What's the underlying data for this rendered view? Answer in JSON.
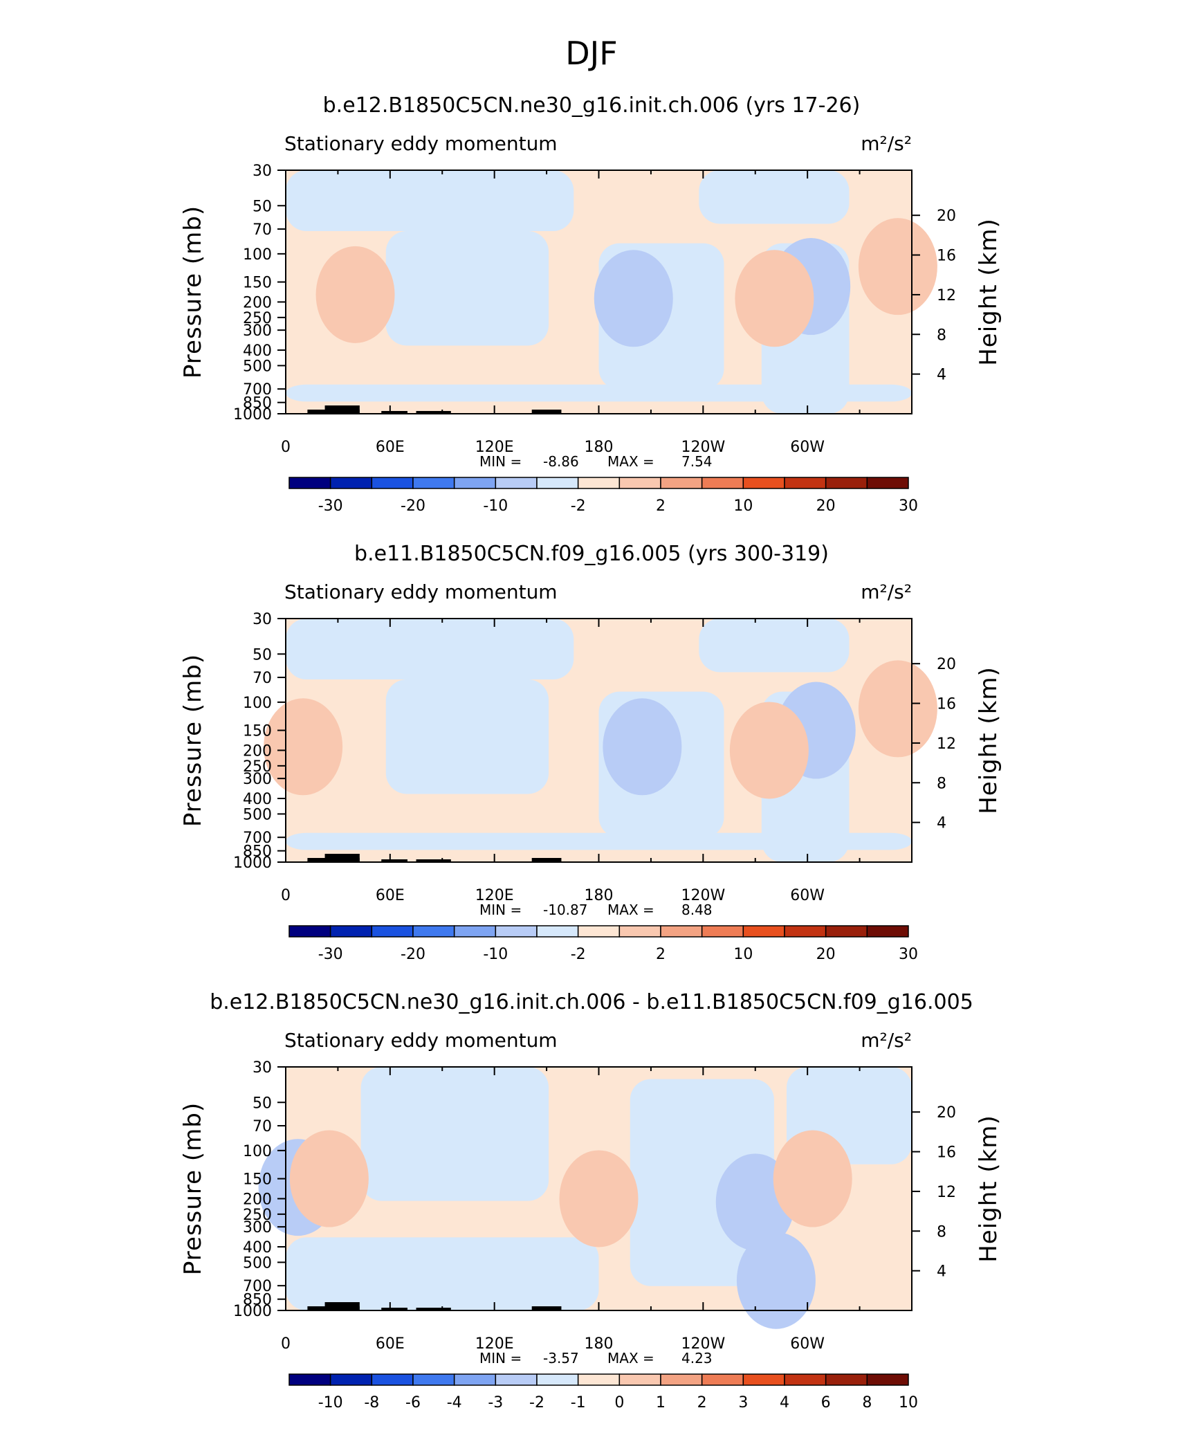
{
  "figure_title": "DJF",
  "chart_data": [
    {
      "type": "heatmap",
      "title": "b.e12.B1850C5CN.ne30_g16.init.ch.006 (yrs 17-26)",
      "subtitle_left": "Stationary eddy momentum",
      "subtitle_right": "m²/s²",
      "xlabel": "",
      "ylabel": "Pressure (mb)",
      "ylabel_right": "Height (km)",
      "x_ticks": [
        "0",
        "60E",
        "120E",
        "180",
        "120W",
        "60W"
      ],
      "x_tick_values": [
        0,
        60,
        120,
        180,
        240,
        300
      ],
      "xlim": [
        0,
        360
      ],
      "y_ticks": [
        "30",
        "50",
        "70",
        "100",
        "150",
        "200",
        "250",
        "300",
        "400",
        "500",
        "700",
        "850",
        "1000"
      ],
      "y_tick_values": [
        30,
        50,
        70,
        100,
        150,
        200,
        250,
        300,
        400,
        500,
        700,
        850,
        1000
      ],
      "ylim": [
        1000,
        30
      ],
      "y_scale": "log",
      "y_right_ticks": [
        "4",
        "8",
        "12",
        "16",
        "20"
      ],
      "min_label": "MIN =",
      "min_value": "-8.86",
      "max_label": "MAX =",
      "max_value": "7.54",
      "colorbar_labels": [
        "-30",
        "-20",
        "-10",
        "-2",
        "2",
        "10",
        "20",
        "30"
      ],
      "features": [
        {
          "lon": 40,
          "p": 180,
          "value": 7.0
        },
        {
          "lon": 200,
          "p": 190,
          "value": -6.5
        },
        {
          "lon": 302,
          "p": 160,
          "value": -8.9
        },
        {
          "lon": 281,
          "p": 190,
          "value": 6.0
        },
        {
          "lon": 352,
          "p": 120,
          "value": 5.0
        }
      ]
    },
    {
      "type": "heatmap",
      "title": "b.e11.B1850C5CN.f09_g16.005 (yrs 300-319)",
      "subtitle_left": "Stationary eddy momentum",
      "subtitle_right": "m²/s²",
      "xlabel": "",
      "ylabel": "Pressure (mb)",
      "ylabel_right": "Height (km)",
      "x_ticks": [
        "0",
        "60E",
        "120E",
        "180",
        "120W",
        "60W"
      ],
      "x_tick_values": [
        0,
        60,
        120,
        180,
        240,
        300
      ],
      "xlim": [
        0,
        360
      ],
      "y_ticks": [
        "30",
        "50",
        "70",
        "100",
        "150",
        "200",
        "250",
        "300",
        "400",
        "500",
        "700",
        "850",
        "1000"
      ],
      "y_tick_values": [
        30,
        50,
        70,
        100,
        150,
        200,
        250,
        300,
        400,
        500,
        700,
        850,
        1000
      ],
      "ylim": [
        1000,
        30
      ],
      "y_scale": "log",
      "y_right_ticks": [
        "4",
        "8",
        "12",
        "16",
        "20"
      ],
      "min_label": "MIN =",
      "min_value": "-10.87",
      "max_label": "MAX =",
      "max_value": "8.48",
      "colorbar_labels": [
        "-30",
        "-20",
        "-10",
        "-2",
        "2",
        "10",
        "20",
        "30"
      ],
      "features": [
        {
          "lon": 10,
          "p": 190,
          "value": 7.5
        },
        {
          "lon": 205,
          "p": 190,
          "value": -6.5
        },
        {
          "lon": 305,
          "p": 150,
          "value": -10.9
        },
        {
          "lon": 278,
          "p": 200,
          "value": 8.5
        },
        {
          "lon": 352,
          "p": 110,
          "value": 5.0
        }
      ]
    },
    {
      "type": "heatmap",
      "title": "b.e12.B1850C5CN.ne30_g16.init.ch.006 - b.e11.B1850C5CN.f09_g16.005",
      "subtitle_left": "Stationary eddy momentum",
      "subtitle_right": "m²/s²",
      "xlabel": "",
      "ylabel": "Pressure (mb)",
      "ylabel_right": "Height (km)",
      "x_ticks": [
        "0",
        "60E",
        "120E",
        "180",
        "120W",
        "60W"
      ],
      "x_tick_values": [
        0,
        60,
        120,
        180,
        240,
        300
      ],
      "xlim": [
        0,
        360
      ],
      "y_ticks": [
        "30",
        "50",
        "70",
        "100",
        "150",
        "200",
        "250",
        "300",
        "400",
        "500",
        "700",
        "850",
        "1000"
      ],
      "y_tick_values": [
        30,
        50,
        70,
        100,
        150,
        200,
        250,
        300,
        400,
        500,
        700,
        850,
        1000
      ],
      "ylim": [
        1000,
        30
      ],
      "y_scale": "log",
      "y_right_ticks": [
        "4",
        "8",
        "12",
        "16",
        "20"
      ],
      "min_label": "MIN =",
      "min_value": "-3.57",
      "max_label": "MAX =",
      "max_value": "4.23",
      "colorbar_labels": [
        "-10",
        "-8",
        "-6",
        "-4",
        "-3",
        "-2",
        "-1",
        "0",
        "1",
        "2",
        "3",
        "4",
        "6",
        "8",
        "10"
      ],
      "features": [
        {
          "lon": 7,
          "p": 170,
          "value": -2.8
        },
        {
          "lon": 25,
          "p": 150,
          "value": 2.5
        },
        {
          "lon": 180,
          "p": 200,
          "value": 2.6
        },
        {
          "lon": 270,
          "p": 210,
          "value": -2.7
        },
        {
          "lon": 303,
          "p": 150,
          "value": 4.2
        },
        {
          "lon": 282,
          "p": 650,
          "value": -3.6
        }
      ]
    }
  ],
  "colors": {
    "ramp": [
      "#00007f",
      "#0022b0",
      "#1a52e0",
      "#3f79ef",
      "#7ea4f2",
      "#b8ccf6",
      "#d6e8fb",
      "#fde6d4",
      "#f9c8b0",
      "#f3a383",
      "#ee7c55",
      "#e8501f",
      "#c23312",
      "#99200b",
      "#6e0d05"
    ],
    "neutral_low": "#d6e8fb",
    "neutral_high": "#fde6d4",
    "topography": "#000000"
  }
}
